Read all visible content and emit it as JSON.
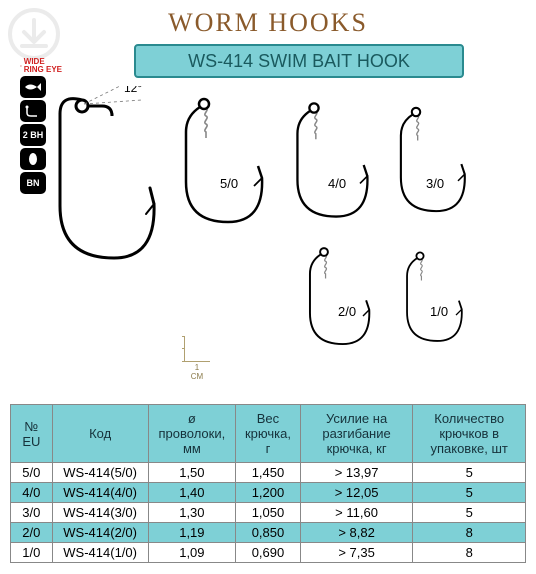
{
  "title": "WORM HOOKS",
  "subtitle": "WS-414 SWIM BAIT HOOK",
  "colors": {
    "title_color": "#8a5a2b",
    "subtitle_bg": "#7ed0d6",
    "subtitle_border": "#2a8a8f",
    "header_bg": "#7ed0d6",
    "alt_row_bg": "#7ed0d6",
    "grid": "#888888"
  },
  "feature_icons": {
    "wide_ring": "WIDE\nRING EYE",
    "fish": "fish",
    "hook_shape": "hook",
    "bh": "2 BH",
    "barb": "barb",
    "bn": "BN"
  },
  "scale": {
    "label": "1\nCM"
  },
  "angle_label": "12°",
  "hook_labels": {
    "h50": "5/0",
    "h40": "4/0",
    "h30": "3/0",
    "h20": "2/0",
    "h10": "1/0"
  },
  "table": {
    "columns": {
      "eu": "№\nEU",
      "code": "Код",
      "wire": "ø\nпроволоки,\nмм",
      "weight": "Вес\nкрючка,\nг",
      "force": "Усилие на\nразгибание\nкрючка, кг",
      "qty": "Количество\nкрючков в\nупаковке, шт"
    },
    "rows": [
      {
        "eu": "5/0",
        "code": "WS-414(5/0)",
        "wire": "1,50",
        "weight": "1,450",
        "force": "> 13,97",
        "qty": "5"
      },
      {
        "eu": "4/0",
        "code": "WS-414(4/0)",
        "wire": "1,40",
        "weight": "1,200",
        "force": "> 12,05",
        "qty": "5"
      },
      {
        "eu": "3/0",
        "code": "WS-414(3/0)",
        "wire": "1,30",
        "weight": "1,050",
        "force": "> 11,60",
        "qty": "5"
      },
      {
        "eu": "2/0",
        "code": "WS-414(2/0)",
        "wire": "1,19",
        "weight": "0,850",
        "force": "> 8,82",
        "qty": "8"
      },
      {
        "eu": "1/0",
        "code": "WS-414(1/0)",
        "wire": "1,09",
        "weight": "0,690",
        "force": "> 7,35",
        "qty": "8"
      }
    ]
  }
}
